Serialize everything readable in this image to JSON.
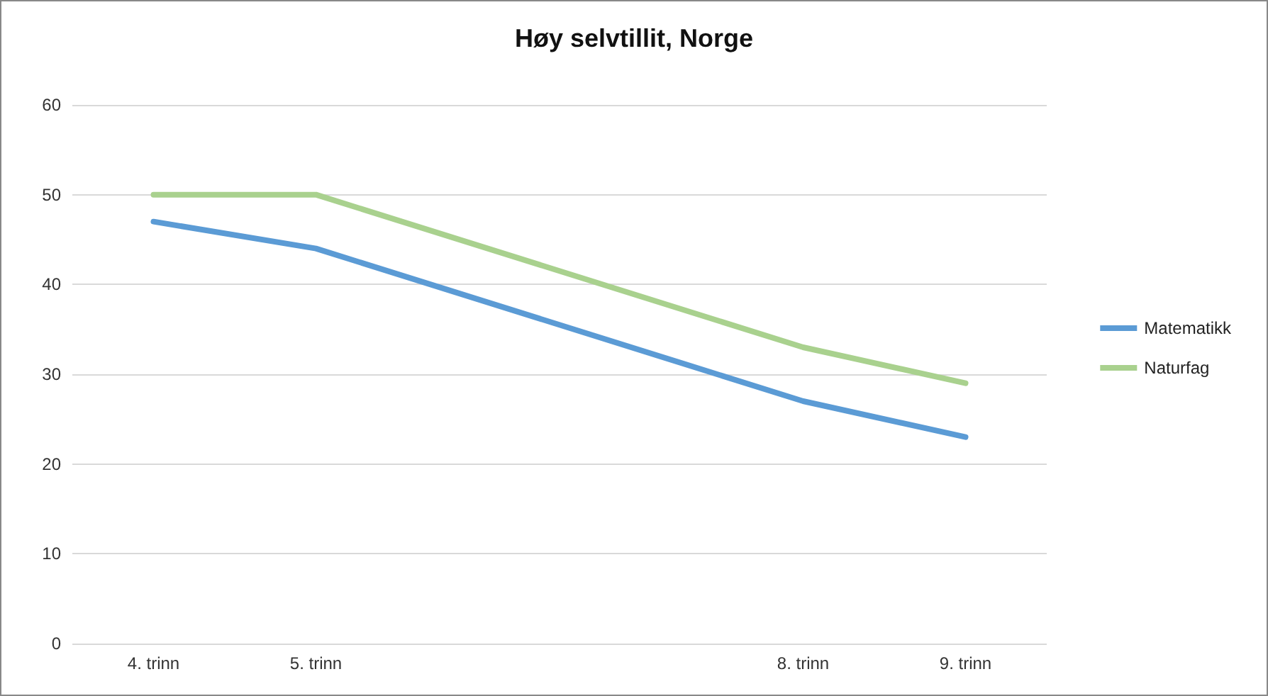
{
  "chart_data": {
    "type": "line",
    "title": "Høy selvtillit, Norge",
    "x": [
      4,
      5,
      8,
      9
    ],
    "series": [
      {
        "name": "Matematikk",
        "color": "#5b9bd5",
        "values": [
          47,
          44,
          27,
          23
        ]
      },
      {
        "name": "Naturfag",
        "color": "#a9d18e",
        "values": [
          50,
          50,
          33,
          29
        ]
      }
    ],
    "xlim": [
      3.5,
      9.5
    ],
    "xticks": [
      {
        "value": 4,
        "label": "4. trinn"
      },
      {
        "value": 5,
        "label": "5. trinn"
      },
      {
        "value": 8,
        "label": "8. trinn"
      },
      {
        "value": 9,
        "label": "9. trinn"
      }
    ],
    "ylim": [
      0,
      60
    ],
    "yticks": [
      0,
      10,
      20,
      30,
      40,
      50,
      60
    ],
    "grid": "y",
    "legend": "right",
    "marker": "none",
    "line_style": "solid"
  }
}
